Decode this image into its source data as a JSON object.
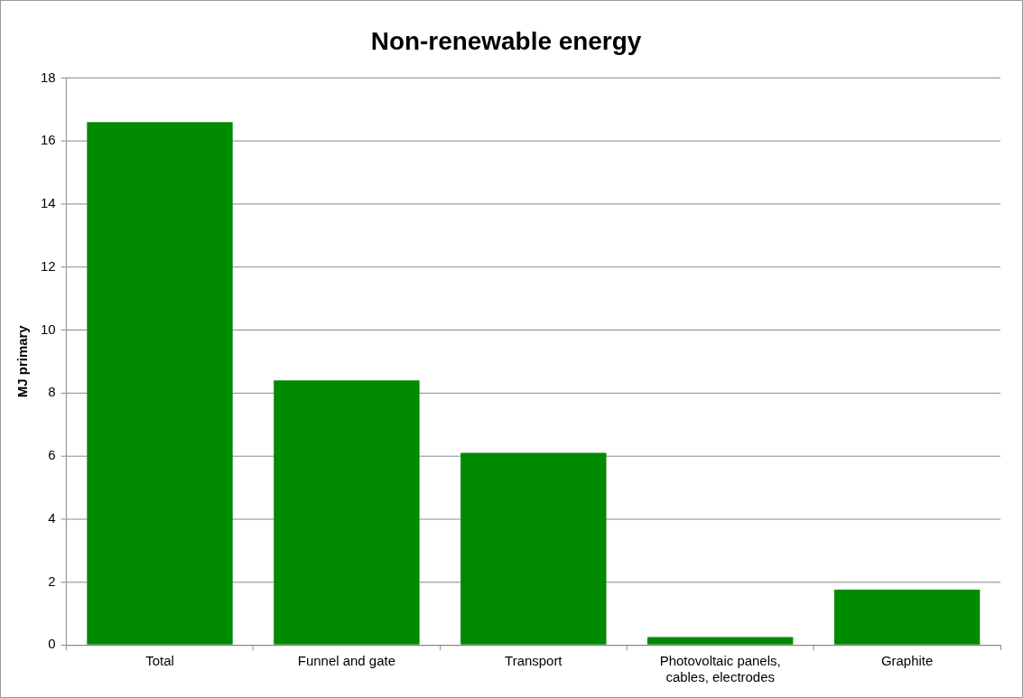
{
  "chart_data": {
    "type": "bar",
    "title": "Non-renewable energy",
    "ylabel": "MJ primary",
    "categories": [
      "Total",
      "Funnel and gate",
      "Transport",
      "Photovoltaic panels, cables, electrodes",
      "Graphite"
    ],
    "values": [
      16.6,
      8.4,
      6.1,
      0.25,
      1.75
    ],
    "color": "#008a00",
    "ylim": [
      0,
      18
    ],
    "yticks": [
      0,
      2,
      4,
      6,
      8,
      10,
      12,
      14,
      16,
      18
    ],
    "grid": "y",
    "legend": false
  }
}
